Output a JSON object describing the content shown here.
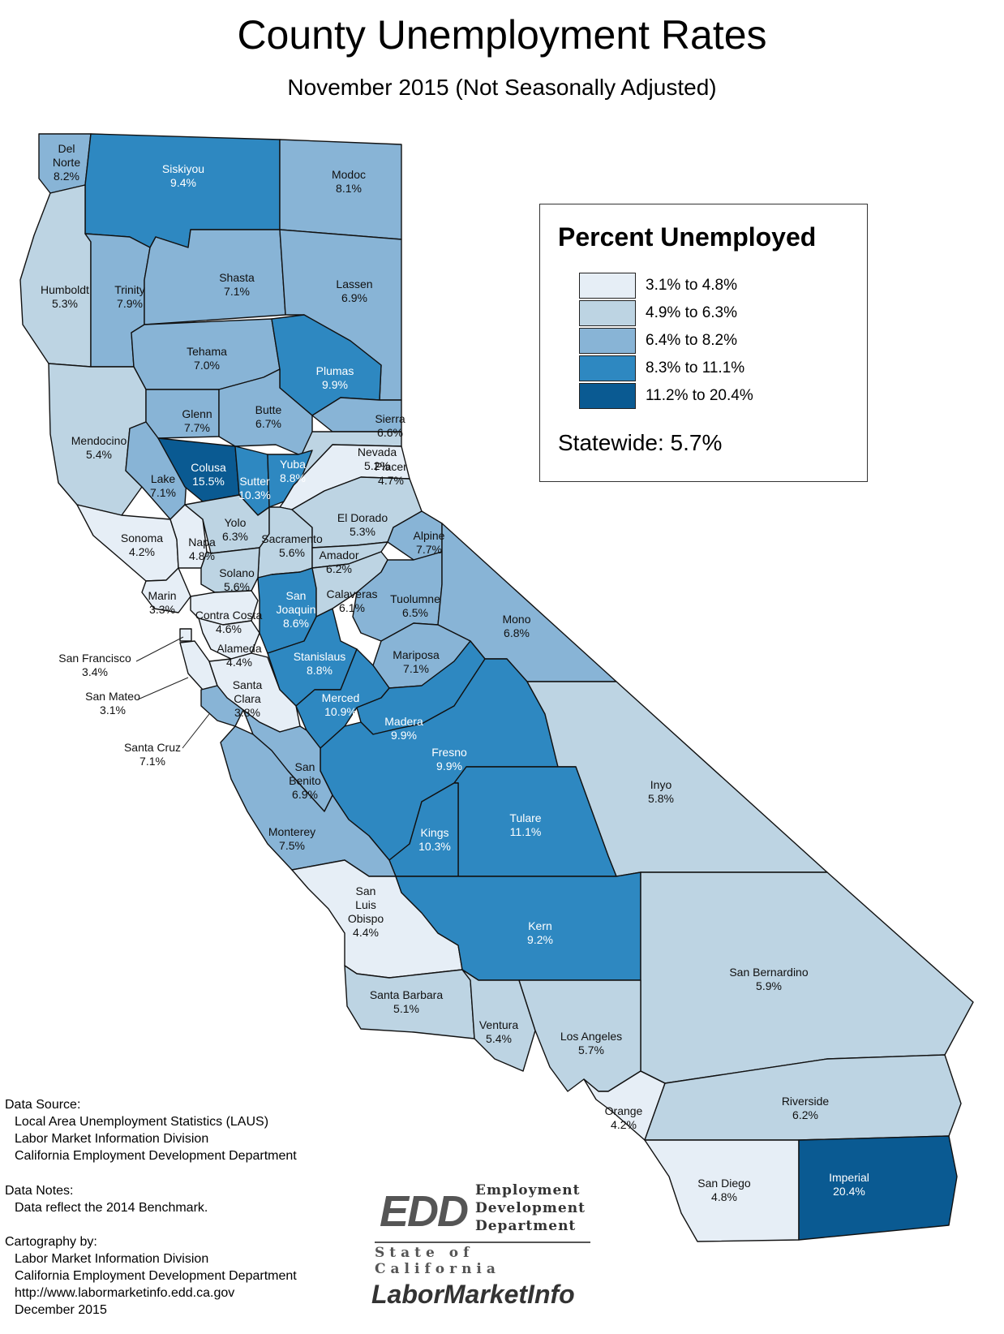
{
  "header": {
    "title": "County Unemployment Rates",
    "subtitle": "November 2015 (Not Seasonally Adjusted)"
  },
  "legend": {
    "title": "Percent Unemployed",
    "classes": [
      {
        "label": "3.1% to 4.8%",
        "color": "#e6eef6"
      },
      {
        "label": "4.9% to 6.3%",
        "color": "#bdd4e3"
      },
      {
        "label": "6.4% to 8.2%",
        "color": "#88b4d6"
      },
      {
        "label": "8.3%  to 11.1%",
        "color": "#2e88c1"
      },
      {
        "label": "11.2% to 20.4%",
        "color": "#0a5a92"
      }
    ],
    "statewide": "Statewide: 5.7%"
  },
  "counties": [
    {
      "name": "Del Norte",
      "rate": "8.2%",
      "cls": 2
    },
    {
      "name": "Siskiyou",
      "rate": "9.4%",
      "cls": 3
    },
    {
      "name": "Modoc",
      "rate": "8.1%",
      "cls": 2
    },
    {
      "name": "Humboldt",
      "rate": "5.3%",
      "cls": 1
    },
    {
      "name": "Trinity",
      "rate": "7.9%",
      "cls": 2
    },
    {
      "name": "Shasta",
      "rate": "7.1%",
      "cls": 2
    },
    {
      "name": "Lassen",
      "rate": "6.9%",
      "cls": 2
    },
    {
      "name": "Tehama",
      "rate": "7.0%",
      "cls": 2
    },
    {
      "name": "Plumas",
      "rate": "9.9%",
      "cls": 3
    },
    {
      "name": "Mendocino",
      "rate": "5.4%",
      "cls": 1
    },
    {
      "name": "Glenn",
      "rate": "7.7%",
      "cls": 2
    },
    {
      "name": "Butte",
      "rate": "6.7%",
      "cls": 2
    },
    {
      "name": "Sierra",
      "rate": "6.6%",
      "cls": 2
    },
    {
      "name": "Nevada",
      "rate": "5.2%",
      "cls": 1
    },
    {
      "name": "Lake",
      "rate": "7.1%",
      "cls": 2
    },
    {
      "name": "Colusa",
      "rate": "15.5%",
      "cls": 4
    },
    {
      "name": "Sutter",
      "rate": "10.3%",
      "cls": 3
    },
    {
      "name": "Yuba",
      "rate": "8.8%",
      "cls": 3
    },
    {
      "name": "Placer",
      "rate": "4.7%",
      "cls": 0
    },
    {
      "name": "Sonoma",
      "rate": "4.2%",
      "cls": 0
    },
    {
      "name": "Napa",
      "rate": "4.8%",
      "cls": 0
    },
    {
      "name": "Yolo",
      "rate": "6.3%",
      "cls": 1
    },
    {
      "name": "Sacramento",
      "rate": "5.6%",
      "cls": 1
    },
    {
      "name": "El Dorado",
      "rate": "5.3%",
      "cls": 1
    },
    {
      "name": "Alpine",
      "rate": "7.7%",
      "cls": 2
    },
    {
      "name": "Amador",
      "rate": "6.2%",
      "cls": 1
    },
    {
      "name": "Solano",
      "rate": "5.6%",
      "cls": 1
    },
    {
      "name": "Marin",
      "rate": "3.3%",
      "cls": 0
    },
    {
      "name": "San Joaquin",
      "rate": "8.6%",
      "cls": 3
    },
    {
      "name": "Calaveras",
      "rate": "6.1%",
      "cls": 1
    },
    {
      "name": "Tuolumne",
      "rate": "6.5%",
      "cls": 2
    },
    {
      "name": "Mono",
      "rate": "6.8%",
      "cls": 2
    },
    {
      "name": "Contra Costa",
      "rate": "4.6%",
      "cls": 0
    },
    {
      "name": "Alameda",
      "rate": "4.4%",
      "cls": 0
    },
    {
      "name": "San Francisco",
      "rate": "3.4%",
      "cls": 0
    },
    {
      "name": "Stanislaus",
      "rate": "8.8%",
      "cls": 3
    },
    {
      "name": "Mariposa",
      "rate": "7.1%",
      "cls": 2
    },
    {
      "name": "San Mateo",
      "rate": "3.1%",
      "cls": 0
    },
    {
      "name": "Santa Clara",
      "rate": "3.8%",
      "cls": 0
    },
    {
      "name": "Merced",
      "rate": "10.9%",
      "cls": 3
    },
    {
      "name": "Madera",
      "rate": "9.9%",
      "cls": 3
    },
    {
      "name": "Santa Cruz",
      "rate": "7.1%",
      "cls": 2
    },
    {
      "name": "Fresno",
      "rate": "9.9%",
      "cls": 3
    },
    {
      "name": "San Benito",
      "rate": "6.9%",
      "cls": 2
    },
    {
      "name": "Inyo",
      "rate": "5.8%",
      "cls": 1
    },
    {
      "name": "Tulare",
      "rate": "11.1%",
      "cls": 3
    },
    {
      "name": "Kings",
      "rate": "10.3%",
      "cls": 3
    },
    {
      "name": "Monterey",
      "rate": "7.5%",
      "cls": 2
    },
    {
      "name": "San Luis Obispo",
      "rate": "4.4%",
      "cls": 0
    },
    {
      "name": "Kern",
      "rate": "9.2%",
      "cls": 3
    },
    {
      "name": "San Bernardino",
      "rate": "5.9%",
      "cls": 1
    },
    {
      "name": "Santa Barbara",
      "rate": "5.1%",
      "cls": 1
    },
    {
      "name": "Ventura",
      "rate": "5.4%",
      "cls": 1
    },
    {
      "name": "Los Angeles",
      "rate": "5.7%",
      "cls": 1
    },
    {
      "name": "Orange",
      "rate": "4.2%",
      "cls": 0
    },
    {
      "name": "Riverside",
      "rate": "6.2%",
      "cls": 1
    },
    {
      "name": "San Diego",
      "rate": "4.8%",
      "cls": 0
    },
    {
      "name": "Imperial",
      "rate": "20.4%",
      "cls": 4
    }
  ],
  "notes": {
    "source_heading": "Data Source:",
    "source_lines": [
      "Local Area Unemployment Statistics (LAUS)",
      "Labor Market Information Division",
      "California Employment Development Department"
    ],
    "notes_heading": "Data Notes:",
    "notes_lines": [
      "Data reflect the 2014 Benchmark."
    ],
    "carto_heading": "Cartography by:",
    "carto_lines": [
      "Labor Market Information Division",
      "California Employment Development Department",
      "http://www.labormarketinfo.edd.ca.gov",
      "December 2015"
    ]
  },
  "logos": {
    "edd_mark": "EDD",
    "edd_name_lines": [
      "Employment",
      "Development",
      "Department"
    ],
    "state_line": "State of California",
    "lmi": "LaborMarketInfo"
  }
}
